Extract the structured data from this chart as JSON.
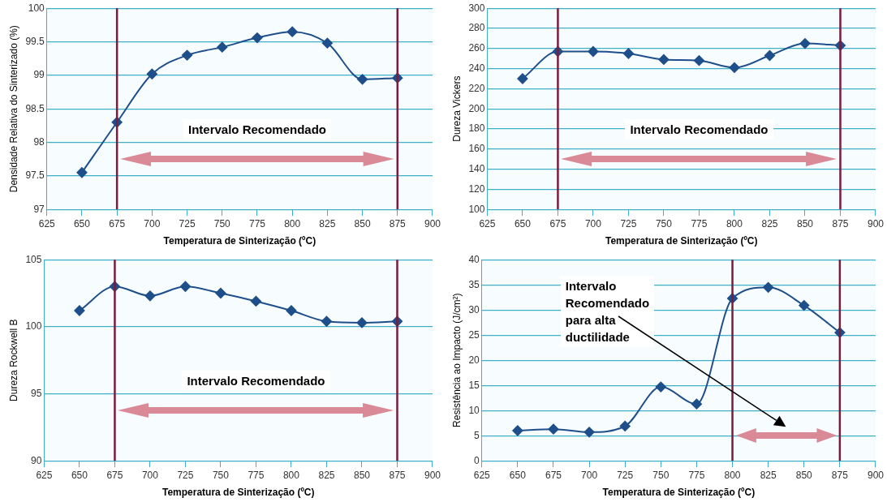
{
  "chart_data": [
    {
      "type": "line",
      "xlabel": "Temperatura de Sinterização (ºC)",
      "ylabel": "Densidade Relativa do Sinterizado (%)",
      "x": [
        650,
        675,
        700,
        725,
        750,
        775,
        800,
        825,
        850,
        875
      ],
      "xlim": [
        625,
        900
      ],
      "xticks": [
        625,
        650,
        675,
        700,
        725,
        750,
        775,
        800,
        825,
        850,
        875,
        900
      ],
      "ylim": [
        97,
        100
      ],
      "yticks": [
        97,
        97.5,
        98,
        98.5,
        99,
        99.5,
        100
      ],
      "grid": "y",
      "marker": "diamond",
      "line_style": "solid",
      "series": [
        {
          "color": "#1f4f8a",
          "values": [
            97.55,
            98.3,
            99.02,
            99.3,
            99.42,
            99.56,
            99.65,
            99.48,
            98.94,
            98.96
          ]
        }
      ],
      "ref_lines": [
        {
          "axis": "x",
          "value": 675,
          "color": "#7b1c3c"
        },
        {
          "axis": "x",
          "value": 875,
          "color": "#7b1c3c"
        }
      ],
      "annotations": [
        "Intervalo Recomendado"
      ]
    },
    {
      "type": "line",
      "xlabel": "Temperatura de Sinterização (ºC)",
      "ylabel": "Dureza Vickers",
      "x": [
        650,
        675,
        700,
        725,
        750,
        775,
        800,
        825,
        850,
        875
      ],
      "xlim": [
        625,
        900
      ],
      "xticks": [
        625,
        650,
        675,
        700,
        725,
        750,
        775,
        800,
        825,
        850,
        875,
        900
      ],
      "ylim": [
        100,
        300
      ],
      "yticks": [
        100,
        120,
        140,
        160,
        180,
        200,
        220,
        240,
        260,
        280,
        300
      ],
      "grid": "y",
      "marker": "diamond",
      "line_style": "solid",
      "series": [
        {
          "color": "#1f4f8a",
          "values": [
            230,
            257,
            257,
            255,
            249,
            248,
            241,
            253,
            265,
            263
          ]
        }
      ],
      "ref_lines": [
        {
          "axis": "x",
          "value": 675,
          "color": "#7b1c3c"
        },
        {
          "axis": "x",
          "value": 875,
          "color": "#7b1c3c"
        }
      ],
      "annotations": [
        "Intervalo Recomendado"
      ]
    },
    {
      "type": "line",
      "xlabel": "Temperatura de Sinterização (ºC)",
      "ylabel": "Dureza Rockwell B",
      "x": [
        650,
        675,
        700,
        725,
        750,
        775,
        800,
        825,
        850,
        875
      ],
      "xlim": [
        625,
        900
      ],
      "xticks": [
        625,
        650,
        675,
        700,
        725,
        750,
        775,
        800,
        825,
        850,
        875,
        900
      ],
      "ylim": [
        90,
        105
      ],
      "yticks": [
        90,
        95,
        100,
        105
      ],
      "grid": "y",
      "marker": "diamond",
      "line_style": "solid",
      "series": [
        {
          "color": "#1f4f8a",
          "values": [
            101.2,
            103.0,
            102.3,
            103.0,
            102.5,
            101.9,
            101.2,
            100.4,
            100.3,
            100.4
          ]
        }
      ],
      "ref_lines": [
        {
          "axis": "x",
          "value": 675,
          "color": "#7b1c3c"
        },
        {
          "axis": "x",
          "value": 875,
          "color": "#7b1c3c"
        }
      ],
      "annotations": [
        "Intervalo Recomendado"
      ]
    },
    {
      "type": "line",
      "xlabel": "Temperatura de Sinterização (ºC)",
      "ylabel": "Resistência ao Impacto (J/cm²)",
      "x": [
        650,
        675,
        700,
        725,
        750,
        775,
        800,
        825,
        850,
        875
      ],
      "xlim": [
        625,
        900
      ],
      "xticks": [
        625,
        650,
        675,
        700,
        725,
        750,
        775,
        800,
        825,
        850,
        875,
        900
      ],
      "ylim": [
        0,
        40
      ],
      "yticks": [
        0,
        5,
        10,
        15,
        20,
        25,
        30,
        35,
        40
      ],
      "grid": "y",
      "marker": "diamond",
      "line_style": "solid",
      "series": [
        {
          "color": "#1f4f8a",
          "values": [
            6,
            6.3,
            5.7,
            6.9,
            14.7,
            11.3,
            32.3,
            34.5,
            30.9,
            25.5
          ]
        }
      ],
      "ref_lines": [
        {
          "axis": "x",
          "value": 800,
          "color": "#7b1c3c"
        },
        {
          "axis": "x",
          "value": 875,
          "color": "#7b1c3c"
        }
      ],
      "annotations": [
        "Intervalo\nRecomendado\npara alta\nductilidade"
      ]
    }
  ]
}
